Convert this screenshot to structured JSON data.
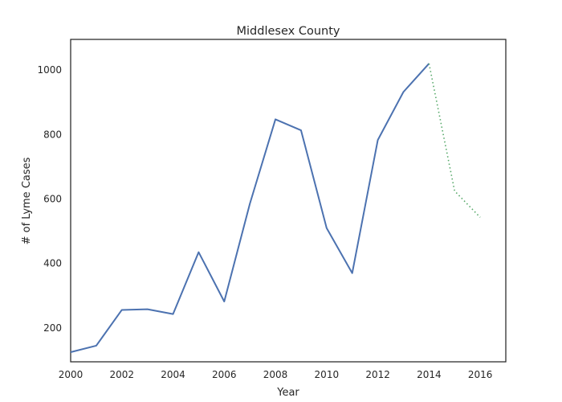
{
  "chart_data": {
    "type": "line",
    "title": "Middlesex County",
    "xlabel": "Year",
    "ylabel": "# of Lyme Cases",
    "xlim": [
      2000,
      2017
    ],
    "ylim": [
      95,
      1095
    ],
    "x_ticks": [
      2000,
      2002,
      2004,
      2006,
      2008,
      2010,
      2012,
      2014,
      2016
    ],
    "y_ticks": [
      200,
      400,
      600,
      800,
      1000
    ],
    "grid": false,
    "legend": "none",
    "series": [
      {
        "style": "solid",
        "color": "#4c72b0",
        "x": [
          2000,
          2001,
          2002,
          2003,
          2004,
          2005,
          2006,
          2007,
          2008,
          2009,
          2010,
          2011,
          2012,
          2013,
          2014
        ],
        "y": [
          125,
          145,
          256,
          258,
          243,
          435,
          282,
          585,
          847,
          813,
          510,
          370,
          783,
          932,
          1020
        ]
      },
      {
        "style": "dotted",
        "color": "#55a868",
        "x": [
          2014,
          2015,
          2016
        ],
        "y": [
          1020,
          625,
          543
        ]
      }
    ]
  }
}
